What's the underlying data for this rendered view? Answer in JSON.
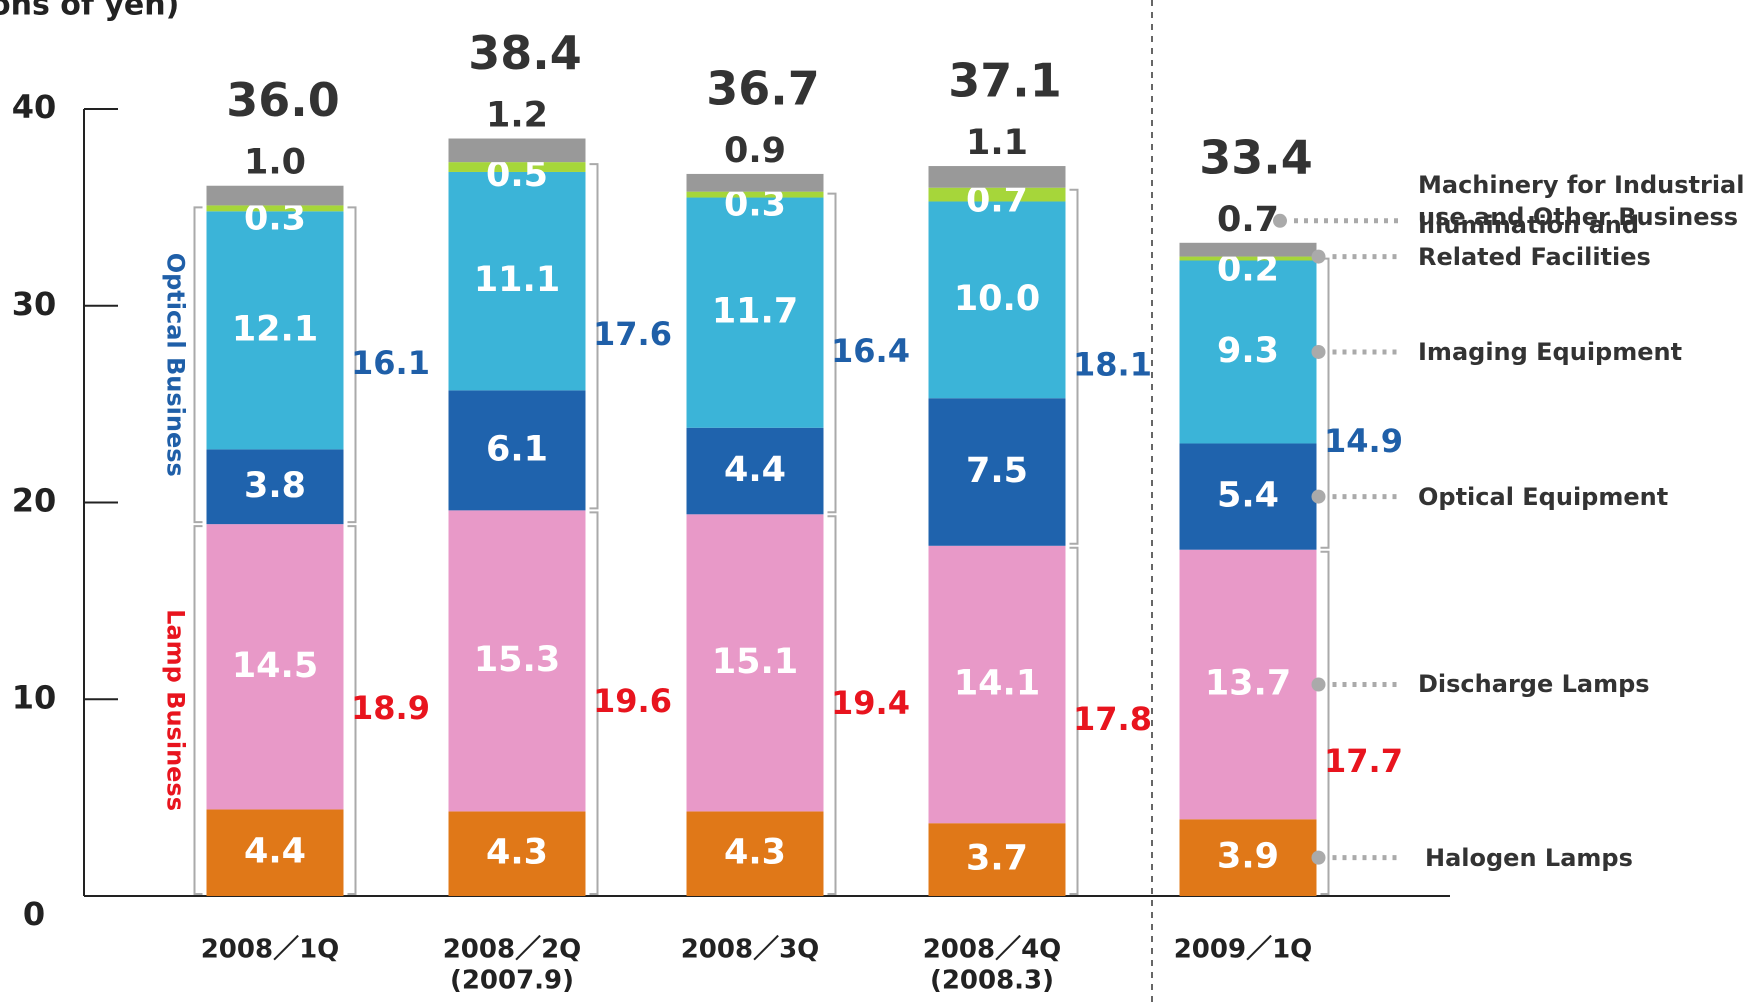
{
  "chart_data": {
    "type": "stacked-bar",
    "y_label": "ons of yen)",
    "categories": [
      "2008／1Q",
      "2008／2Q",
      "2008／3Q",
      "2008／4Q",
      "2009／1Q"
    ],
    "sublabels": [
      null,
      "(2007.9)",
      null,
      "(2008.3)",
      null
    ],
    "ylim": [
      0,
      40
    ],
    "yticks": [
      0,
      10,
      20,
      30,
      40
    ],
    "series": [
      {
        "name": "Halogen Lamps",
        "color": "#e07818",
        "values": [
          4.4,
          4.3,
          4.3,
          3.7,
          3.9
        ]
      },
      {
        "name": "Discharge Lamps",
        "color": "#e899c8",
        "values": [
          14.5,
          15.3,
          15.1,
          14.1,
          13.7
        ]
      },
      {
        "name": "Optical Equipment",
        "color": "#1f63ad",
        "values": [
          3.8,
          6.1,
          4.4,
          7.5,
          5.4
        ]
      },
      {
        "name": "Imaging Equipment",
        "color": "#3bb4d8",
        "values": [
          12.1,
          11.1,
          11.7,
          10.0,
          9.3
        ],
        "value_labels": [
          "12.1",
          "11.1",
          "11.7",
          "10.0",
          "9.3"
        ]
      },
      {
        "name": "Illumination and Related Facilities",
        "color": "#a6d63a",
        "values": [
          0.3,
          0.5,
          0.3,
          0.7,
          0.2
        ]
      },
      {
        "name": "Machinery for Industrial use and Other Business",
        "color": "#999999",
        "values": [
          1.0,
          1.2,
          0.9,
          1.1,
          0.7
        ],
        "value_labels": [
          "1.0",
          "1.2",
          "0.9",
          "1.1",
          "0.7"
        ]
      }
    ],
    "groups": [
      {
        "name": "Lamp Business",
        "color": "#e8141e",
        "values": [
          18.9,
          19.6,
          19.4,
          17.8,
          17.7
        ]
      },
      {
        "name": "Optical Business",
        "color": "#1f5fa8",
        "values": [
          16.1,
          17.6,
          16.4,
          18.1,
          14.9
        ]
      }
    ],
    "totals": {
      "values": [
        36.0,
        38.4,
        36.7,
        37.1,
        33.4
      ],
      "value_labels": [
        "36.0",
        "38.4",
        "36.7",
        "37.1",
        "33.4"
      ]
    }
  }
}
